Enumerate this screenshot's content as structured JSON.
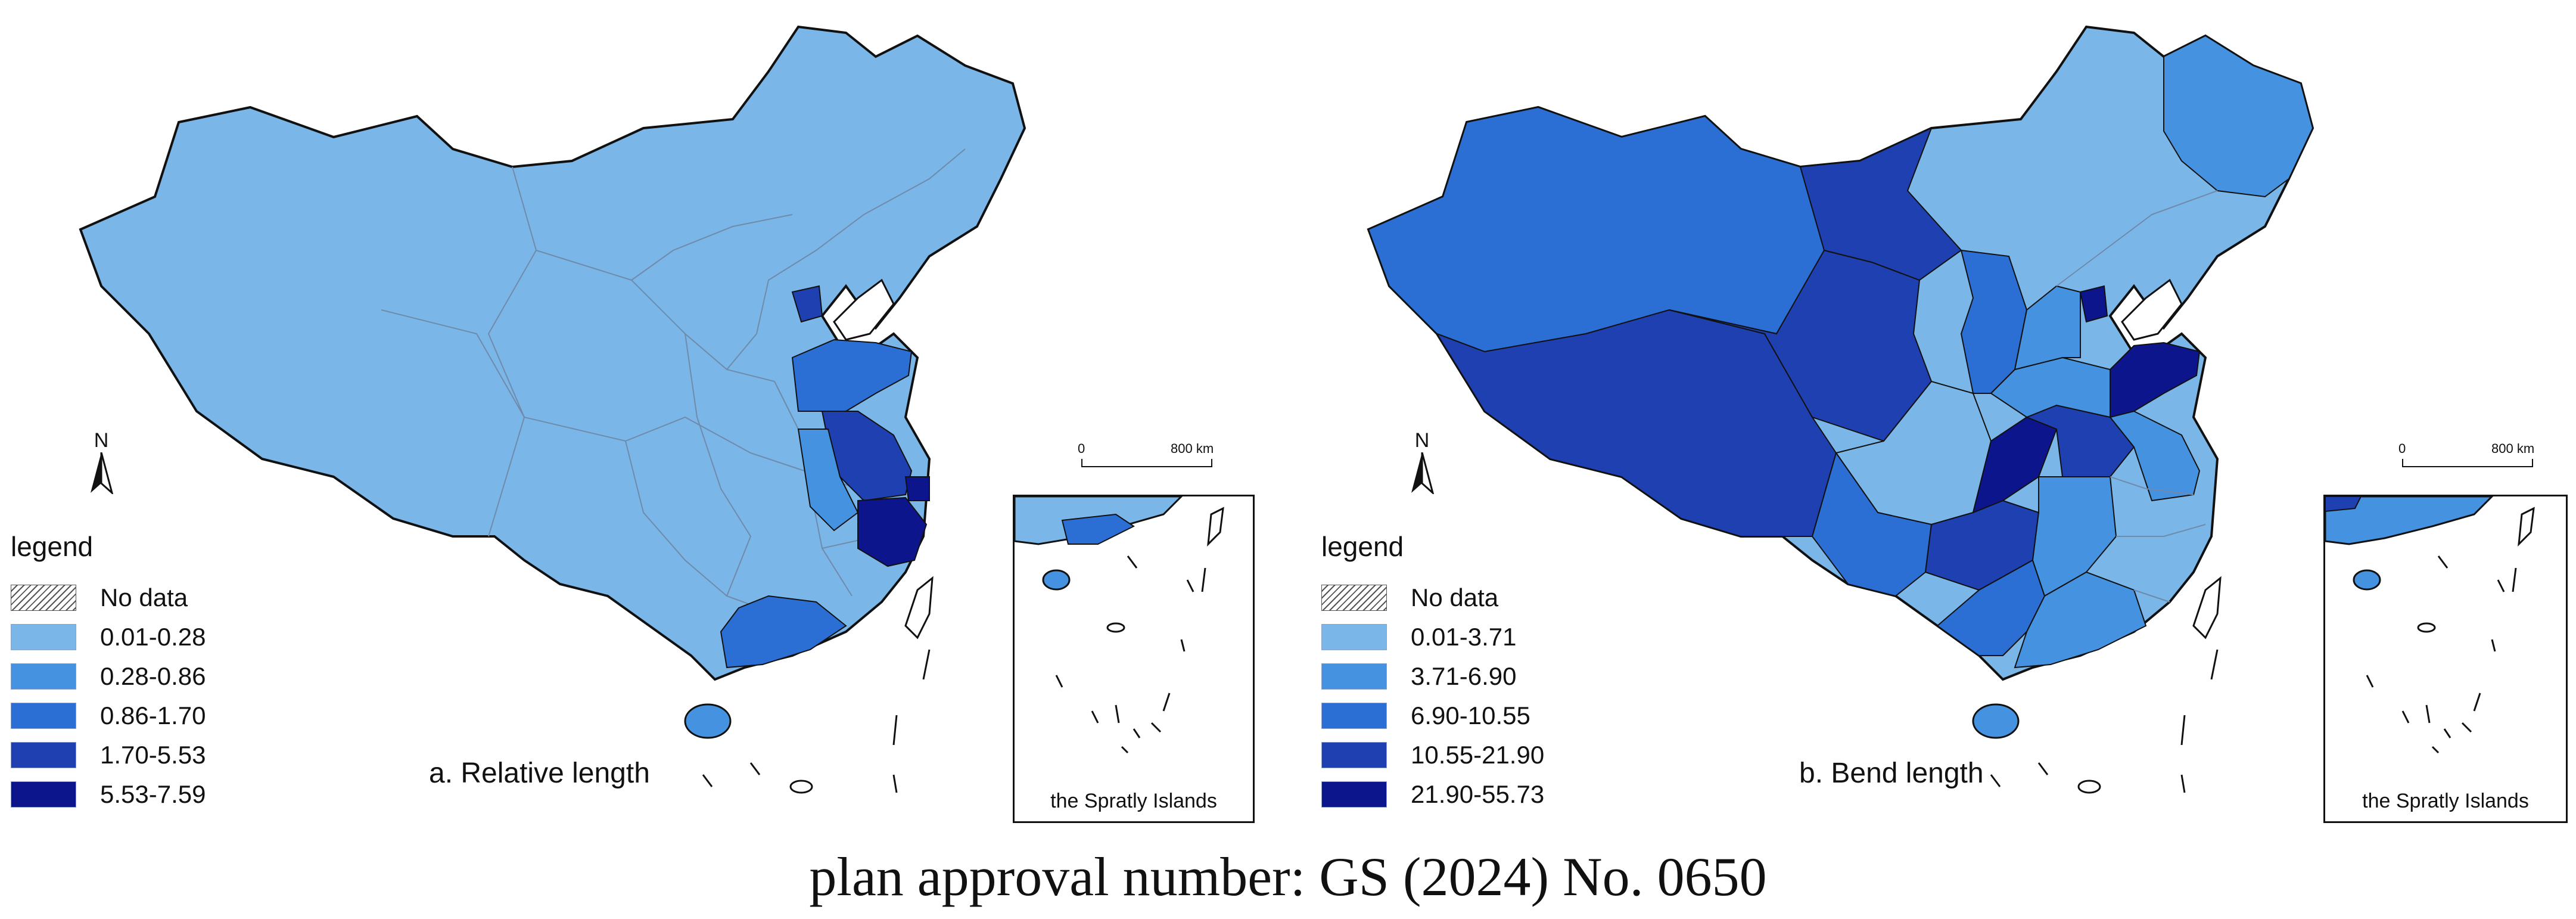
{
  "panels": [
    {
      "caption": "a. Relative length",
      "legend_title": "legend",
      "legend": [
        {
          "label": "No data",
          "color": "hatch"
        },
        {
          "label": "0.01-0.28",
          "color": "#7ab7e8"
        },
        {
          "label": "0.28-0.86",
          "color": "#4593e0"
        },
        {
          "label": "0.86-1.70",
          "color": "#2b6fd4"
        },
        {
          "label": "1.70-5.53",
          "color": "#1e40b0"
        },
        {
          "label": "5.53-7.59",
          "color": "#0c158c"
        }
      ],
      "north": "N",
      "scale": {
        "start": "0",
        "end": "800 km"
      },
      "inset_label": "the Spratly Islands"
    },
    {
      "caption": "b. Bend length",
      "legend_title": "legend",
      "legend": [
        {
          "label": "No data",
          "color": "hatch"
        },
        {
          "label": "0.01-3.71",
          "color": "#7ab7e8"
        },
        {
          "label": "3.71-6.90",
          "color": "#4593e0"
        },
        {
          "label": "6.90-10.55",
          "color": "#2b6fd4"
        },
        {
          "label": "10.55-21.90",
          "color": "#1e40b0"
        },
        {
          "label": "21.90-55.73",
          "color": "#0c158c"
        }
      ],
      "north": "N",
      "scale": {
        "start": "0",
        "end": "800 km"
      },
      "inset_label": "the Spratly Islands"
    }
  ],
  "approval": "plan approval number: GS (2024) No. 0650"
}
